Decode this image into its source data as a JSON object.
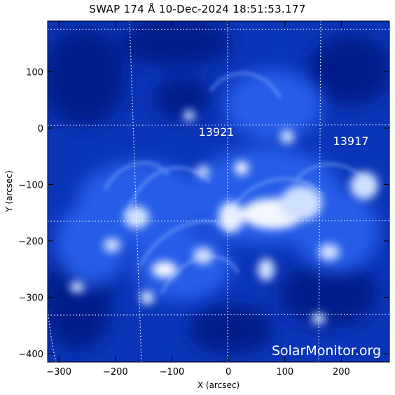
{
  "title": "SWAP 174 Å 10-Dec-2024 18:51:53.177",
  "axes": {
    "xlabel": "X (arcsec)",
    "ylabel": "Y (arcsec)",
    "xlim": [
      -320,
      285
    ],
    "ylim": [
      -415,
      190
    ],
    "x_ticks": [
      -300,
      -200,
      -100,
      0,
      100,
      200
    ],
    "y_ticks": [
      100,
      0,
      -100,
      -200,
      -300,
      -400
    ]
  },
  "active_regions": [
    {
      "number": "13921",
      "x": -20,
      "y": -8
    },
    {
      "number": "13917",
      "x": 215,
      "y": -25
    }
  ],
  "watermark": "SolarMonitor.org",
  "colors": {
    "background_dark": "#0a2ea8",
    "mid_blue": "#1f56e6",
    "bright": "#e8f2ff",
    "grid": "#ffffff"
  }
}
